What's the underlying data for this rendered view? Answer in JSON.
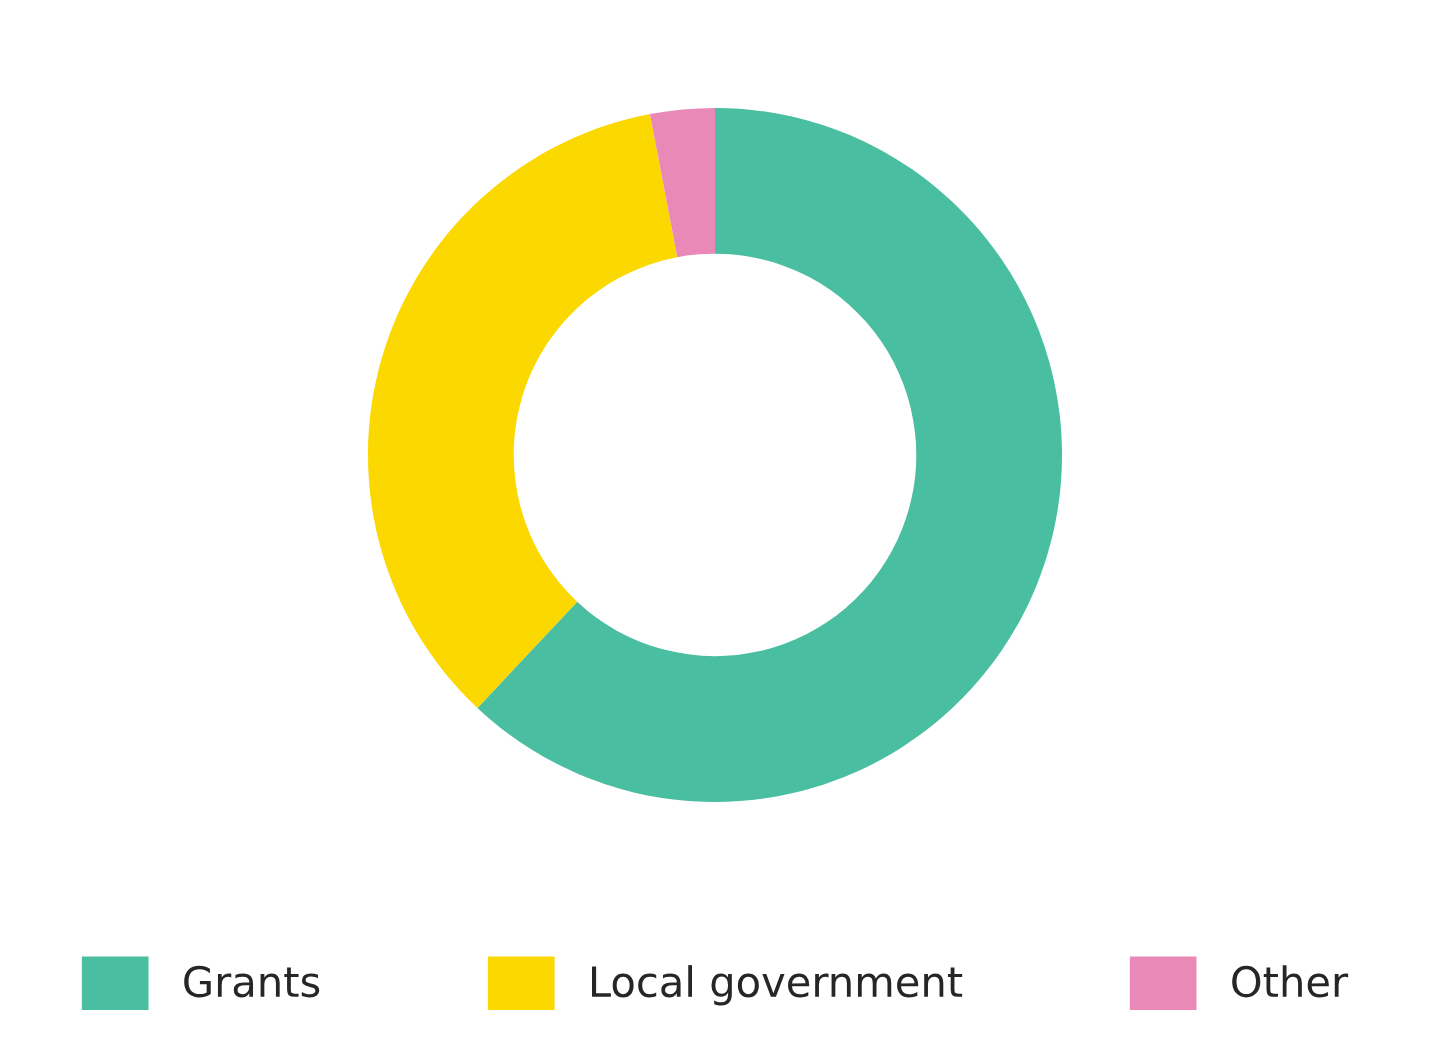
{
  "chart_data": {
    "type": "donut",
    "categories": [
      "Grants",
      "Local government",
      "Other"
    ],
    "values": [
      62,
      35,
      3
    ],
    "colors": [
      "#4abea0",
      "#fbd800",
      "#e989b8"
    ],
    "legend": "bottom"
  }
}
